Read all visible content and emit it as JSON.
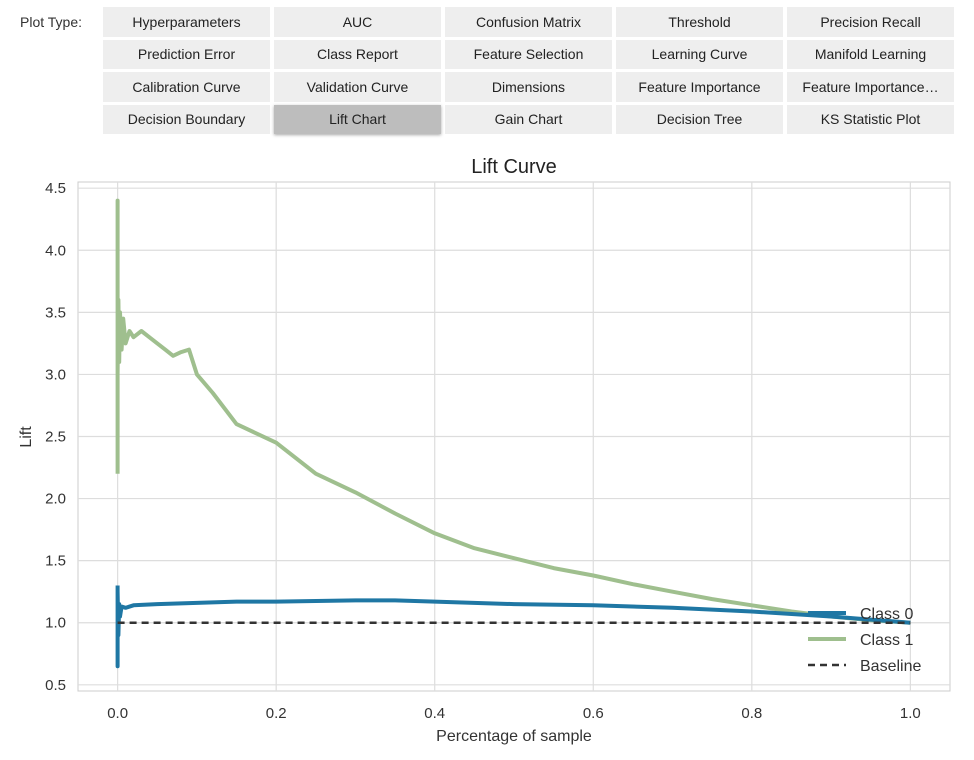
{
  "toolbar": {
    "label": "Plot Type:",
    "buttons": [
      "Hyperparameters",
      "AUC",
      "Confusion Matrix",
      "Threshold",
      "Precision Recall",
      "Prediction Error",
      "Class Report",
      "Feature Selection",
      "Learning Curve",
      "Manifold Learning",
      "Calibration Curve",
      "Validation Curve",
      "Dimensions",
      "Feature Importance",
      "Feature Importance…",
      "Decision Boundary",
      "Lift Chart",
      "Gain Chart",
      "Decision Tree",
      "KS Statistic Plot"
    ],
    "active": "Lift Chart"
  },
  "chart_data": {
    "type": "line",
    "title": "Lift Curve",
    "xlabel": "Percentage of sample",
    "ylabel": "Lift",
    "xlim": [
      -0.05,
      1.05
    ],
    "ylim": [
      0.45,
      4.55
    ],
    "xticks": [
      "0.0",
      "0.2",
      "0.4",
      "0.6",
      "0.8",
      "1.0"
    ],
    "xtick_values": [
      0.0,
      0.2,
      0.4,
      0.6,
      0.8,
      1.0
    ],
    "yticks": [
      "0.5",
      "1.0",
      "1.5",
      "2.0",
      "2.5",
      "3.0",
      "3.5",
      "4.0",
      "4.5"
    ],
    "ytick_values": [
      0.5,
      1.0,
      1.5,
      2.0,
      2.5,
      3.0,
      3.5,
      4.0,
      4.5
    ],
    "grid": true,
    "legend_position": "bottom-right",
    "series": [
      {
        "name": "Class 0",
        "color": "#1f77a4",
        "x": [
          0.0,
          0.0,
          0.0,
          0.001,
          0.002,
          0.003,
          0.005,
          0.01,
          0.02,
          0.05,
          0.1,
          0.15,
          0.2,
          0.3,
          0.35,
          0.4,
          0.5,
          0.6,
          0.7,
          0.8,
          0.9,
          1.0
        ],
        "y": [
          1.3,
          0.65,
          1.25,
          0.9,
          1.15,
          1.05,
          1.13,
          1.12,
          1.14,
          1.15,
          1.16,
          1.17,
          1.17,
          1.18,
          1.18,
          1.17,
          1.15,
          1.14,
          1.12,
          1.09,
          1.05,
          1.0
        ]
      },
      {
        "name": "Class 1",
        "color": "#9fbf8e",
        "x": [
          0.0,
          0.0,
          0.0,
          0.001,
          0.002,
          0.003,
          0.005,
          0.007,
          0.01,
          0.015,
          0.02,
          0.03,
          0.04,
          0.05,
          0.06,
          0.07,
          0.08,
          0.09,
          0.1,
          0.12,
          0.15,
          0.2,
          0.25,
          0.3,
          0.35,
          0.4,
          0.45,
          0.5,
          0.55,
          0.6,
          0.65,
          0.7,
          0.75,
          0.8,
          0.85,
          0.9,
          0.95,
          1.0
        ],
        "y": [
          2.2,
          4.4,
          3.0,
          3.6,
          3.1,
          3.5,
          3.2,
          3.45,
          3.25,
          3.35,
          3.3,
          3.35,
          3.3,
          3.25,
          3.2,
          3.15,
          3.18,
          3.2,
          3.0,
          2.85,
          2.6,
          2.45,
          2.2,
          2.05,
          1.88,
          1.72,
          1.6,
          1.52,
          1.44,
          1.38,
          1.31,
          1.25,
          1.19,
          1.14,
          1.09,
          1.05,
          1.02,
          1.0
        ]
      },
      {
        "name": "Baseline",
        "color": "#333333",
        "dashed": true,
        "x": [
          0.0,
          1.0
        ],
        "y": [
          1.0,
          1.0
        ]
      }
    ]
  }
}
